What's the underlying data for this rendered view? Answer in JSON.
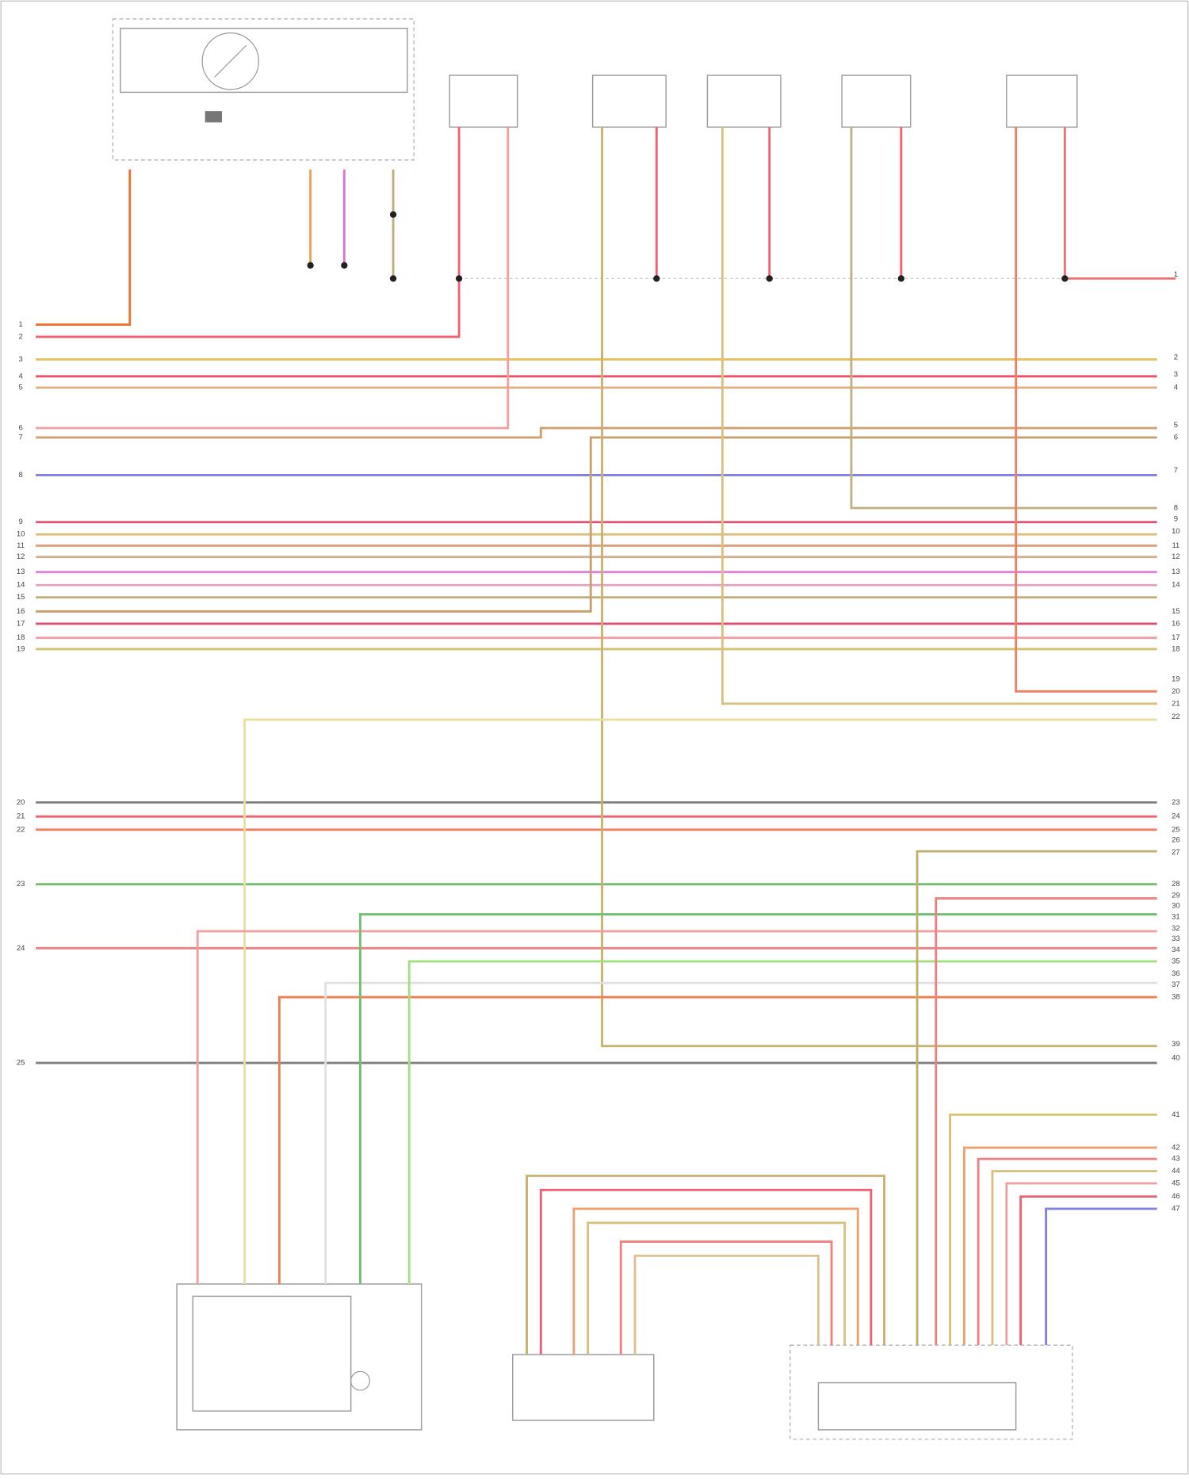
{
  "connector_left": {
    "pins": [
      "1",
      "2",
      "3",
      "4",
      "5",
      "6",
      "7",
      "8",
      "9",
      "10",
      "11",
      "12",
      "13",
      "14",
      "15",
      "16",
      "17",
      "18",
      "19",
      "20",
      "21",
      "22",
      "23",
      "24",
      "25"
    ]
  },
  "connector_right": {
    "pins": [
      "1",
      "2",
      "3",
      "4",
      "5",
      "6",
      "7",
      "8",
      "9",
      "10",
      "11",
      "12",
      "13",
      "14",
      "15",
      "16",
      "17",
      "18",
      "19",
      "20",
      "21",
      "22",
      "23",
      "24",
      "25",
      "26",
      "27",
      "28",
      "29",
      "30",
      "31",
      "32",
      "33",
      "34",
      "35",
      "36",
      "37",
      "38",
      "39",
      "40",
      "41",
      "42",
      "43",
      "44",
      "45",
      "46",
      "47"
    ]
  }
}
